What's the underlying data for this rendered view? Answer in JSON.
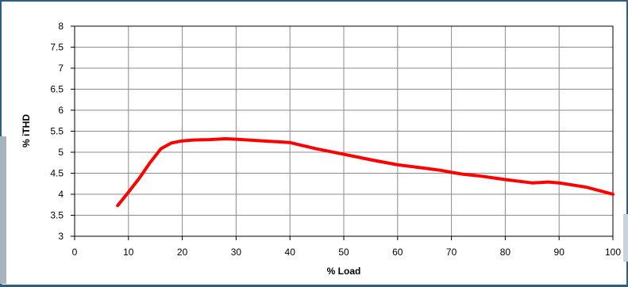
{
  "chart_data": {
    "type": "line",
    "xlabel": "% Load",
    "ylabel": "% iTHD",
    "xlim": [
      0,
      100
    ],
    "ylim": [
      3,
      8
    ],
    "xticks": [
      0,
      10,
      20,
      30,
      40,
      50,
      60,
      70,
      80,
      90,
      100
    ],
    "yticks": [
      3,
      3.5,
      4,
      4.5,
      5,
      5.5,
      6,
      6.5,
      7,
      7.5,
      8
    ],
    "yticks_text": [
      "3",
      "3.5",
      "4",
      "4.5",
      "5",
      "5.5",
      "6",
      "6.5",
      "7",
      "7.5",
      "8"
    ],
    "grid": true,
    "line_color": "#ff0000",
    "series": [
      {
        "x": [
          8,
          10,
          12,
          14,
          16,
          18,
          20,
          22,
          25,
          28,
          30,
          35,
          40,
          45,
          50,
          55,
          60,
          65,
          68,
          70,
          72,
          75,
          80,
          85,
          88,
          90,
          95,
          100
        ],
        "y": [
          3.73,
          4.05,
          4.38,
          4.75,
          5.08,
          5.22,
          5.27,
          5.29,
          5.3,
          5.32,
          5.31,
          5.27,
          5.23,
          5.08,
          4.95,
          4.82,
          4.7,
          4.62,
          4.57,
          4.52,
          4.48,
          4.44,
          4.35,
          4.27,
          4.29,
          4.27,
          4.17,
          4.0
        ]
      }
    ]
  }
}
